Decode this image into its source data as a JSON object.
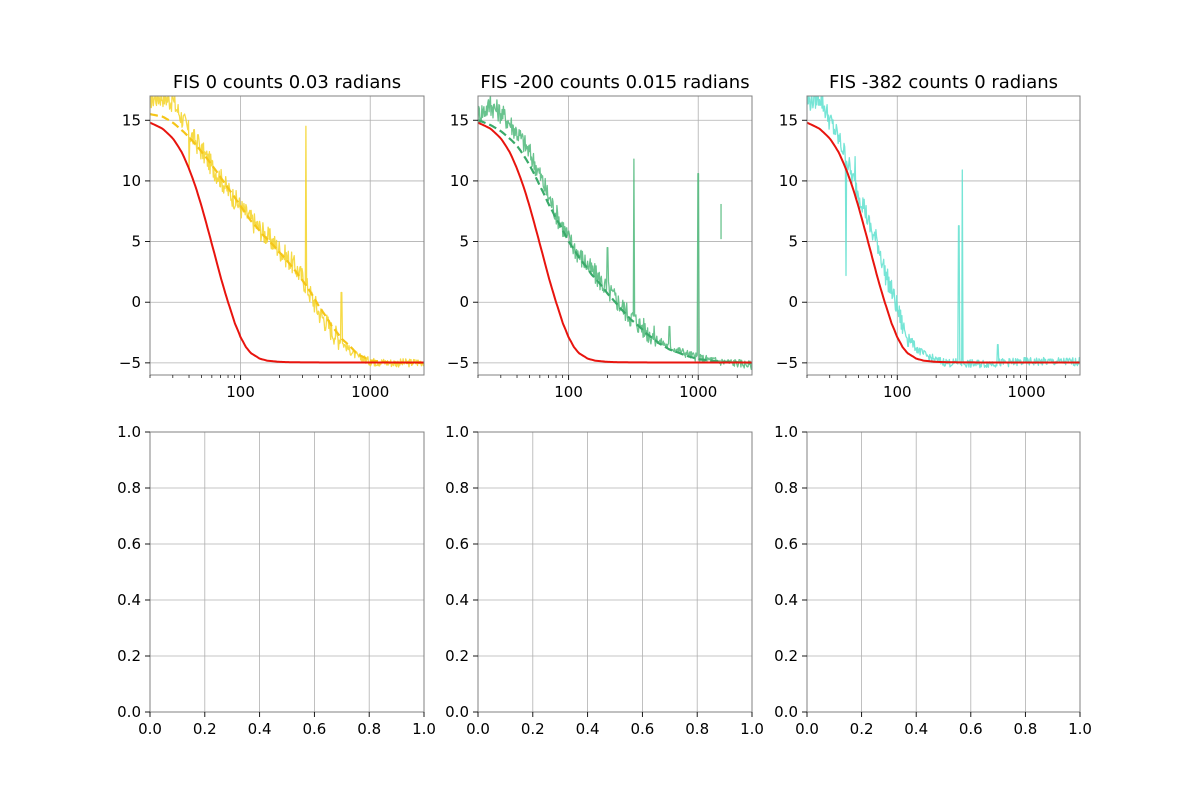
{
  "chart_data": [
    {
      "type": "line",
      "title": "FIS 0 counts 0.03 radians",
      "xlabel": "",
      "ylabel": "",
      "x_scale": "log",
      "xlim": [
        20,
        2600
      ],
      "ylim": [
        -6,
        17
      ],
      "grid": true,
      "x_ticks": [
        100,
        1000
      ],
      "x_tick_labels": [
        "100",
        "1000"
      ],
      "y_ticks": [
        -5,
        0,
        5,
        10,
        15
      ],
      "y_tick_labels": [
        "−5",
        "0",
        "5",
        "10",
        "15"
      ],
      "series": [
        {
          "style": "noisy",
          "color": "#f5d327",
          "x": [
            20,
            25,
            30,
            40,
            50,
            60,
            70,
            80,
            100,
            120,
            150,
            200,
            250,
            300,
            320,
            350,
            400,
            500,
            600,
            700,
            800,
            1000,
            1500,
            2000,
            2600
          ],
          "y": [
            16.8,
            17,
            16.5,
            14,
            12.5,
            11.2,
            10.2,
            9.2,
            7.8,
            6.8,
            5.7,
            4.3,
            3.2,
            2.0,
            1.4,
            0.5,
            -0.8,
            -2.3,
            -3.3,
            -4.0,
            -4.5,
            -4.9,
            -5.0,
            -5.0,
            -4.9
          ],
          "spikes": [
            [
              30,
              17
            ],
            [
              40,
              11
            ],
            [
              47,
              13.8
            ],
            [
              320,
              14.5
            ],
            [
              600,
              0.8
            ]
          ]
        },
        {
          "style": "dashed",
          "color": "#f5c518",
          "x": [
            20,
            25,
            30,
            40,
            50,
            60,
            70,
            80,
            100,
            120,
            150,
            200,
            250,
            300,
            400,
            500,
            600,
            800,
            1000,
            1500,
            2600
          ],
          "y": [
            15.5,
            15.3,
            14.8,
            13.6,
            12.4,
            11.3,
            10.3,
            9.4,
            7.9,
            6.7,
            5.5,
            4.1,
            2.9,
            1.8,
            -0.3,
            -1.9,
            -3.0,
            -4.3,
            -4.8,
            -5.0,
            -5.0
          ]
        },
        {
          "style": "solid",
          "color": "#e8140e",
          "x": [
            20,
            25,
            30,
            35,
            40,
            45,
            50,
            55,
            60,
            65,
            70,
            75,
            80,
            90,
            100,
            110,
            120,
            140,
            160,
            200,
            250,
            300,
            500,
            1000,
            2600
          ],
          "y": [
            14.8,
            14.3,
            13.5,
            12.4,
            11.0,
            9.5,
            7.9,
            6.3,
            4.8,
            3.4,
            2.1,
            1.0,
            0.0,
            -1.7,
            -2.9,
            -3.7,
            -4.2,
            -4.65,
            -4.82,
            -4.92,
            -4.95,
            -4.96,
            -4.97,
            -4.97,
            -4.97
          ]
        }
      ]
    },
    {
      "type": "line",
      "title": "FIS -200 counts 0.015 radians",
      "xlabel": "",
      "ylabel": "",
      "x_scale": "log",
      "xlim": [
        20,
        2600
      ],
      "ylim": [
        -6,
        17
      ],
      "grid": true,
      "x_ticks": [
        100,
        1000
      ],
      "x_tick_labels": [
        "100",
        "1000"
      ],
      "y_ticks": [
        -5,
        0,
        5,
        10,
        15
      ],
      "y_tick_labels": [
        "−5",
        "0",
        "5",
        "10",
        "15"
      ],
      "series": [
        {
          "style": "noisy",
          "color": "#4fb97a",
          "x": [
            20,
            25,
            30,
            40,
            50,
            60,
            70,
            80,
            100,
            120,
            150,
            200,
            250,
            300,
            400,
            500,
            600,
            800,
            1000,
            1500,
            2000,
            2600
          ],
          "y": [
            15.5,
            16.2,
            15.6,
            14.0,
            12.3,
            10.5,
            8.7,
            7.3,
            5.2,
            3.9,
            2.6,
            1.0,
            -0.2,
            -1.2,
            -2.4,
            -3.2,
            -3.7,
            -4.2,
            -4.6,
            -4.9,
            -5.0,
            -5.2
          ],
          "spikes": [
            [
              25,
              17
            ],
            [
              200,
              4.5
            ],
            [
              320,
              11.8
            ],
            [
              600,
              -2.0
            ],
            [
              1000,
              10.6
            ]
          ],
          "fragment": {
            "x": [
              1500,
              1500
            ],
            "y": [
              5.2,
              8.1
            ]
          }
        },
        {
          "style": "dashed",
          "color": "#3aaa6a",
          "x": [
            20,
            25,
            30,
            40,
            50,
            60,
            70,
            80,
            100,
            120,
            150,
            200,
            250,
            300,
            400,
            500,
            600,
            800,
            1000,
            1500,
            2600
          ],
          "y": [
            15.0,
            14.6,
            14.1,
            12.9,
            11.3,
            9.6,
            8.1,
            6.9,
            5.0,
            3.7,
            2.3,
            0.7,
            -0.5,
            -1.4,
            -2.6,
            -3.4,
            -3.9,
            -4.4,
            -4.7,
            -4.9,
            -5.0
          ]
        },
        {
          "style": "solid",
          "color": "#e8140e",
          "x": [
            20,
            25,
            30,
            35,
            40,
            45,
            50,
            55,
            60,
            65,
            70,
            75,
            80,
            90,
            100,
            110,
            120,
            140,
            160,
            200,
            250,
            300,
            500,
            1000,
            2600
          ],
          "y": [
            14.8,
            14.3,
            13.5,
            12.4,
            11.0,
            9.5,
            7.9,
            6.3,
            4.8,
            3.4,
            2.1,
            1.0,
            0.0,
            -1.7,
            -2.9,
            -3.7,
            -4.2,
            -4.65,
            -4.82,
            -4.92,
            -4.95,
            -4.96,
            -4.97,
            -4.97,
            -4.97
          ]
        }
      ]
    },
    {
      "type": "line",
      "title": "FIS -382 counts 0 radians",
      "xlabel": "",
      "ylabel": "",
      "x_scale": "log",
      "xlim": [
        20,
        2600
      ],
      "ylim": [
        -6,
        17
      ],
      "grid": true,
      "x_ticks": [
        100,
        1000
      ],
      "x_tick_labels": [
        "100",
        "1000"
      ],
      "y_ticks": [
        -5,
        0,
        5,
        10,
        15
      ],
      "y_tick_labels": [
        "−5",
        "0",
        "5",
        "10",
        "15"
      ],
      "series": [
        {
          "style": "noisy",
          "color": "#5fe0cf",
          "x": [
            20,
            25,
            30,
            35,
            40,
            45,
            50,
            55,
            60,
            65,
            70,
            75,
            80,
            90,
            100,
            110,
            120,
            140,
            160,
            200,
            250,
            300,
            400,
            600,
            1000,
            1500,
            2600
          ],
          "y": [
            16.5,
            17,
            15.0,
            13.5,
            12.0,
            10.2,
            9.0,
            8.0,
            6.5,
            5.5,
            5.0,
            3.8,
            2.5,
            1.0,
            -0.5,
            -2.0,
            -2.8,
            -3.8,
            -4.3,
            -4.8,
            -5.0,
            -5.0,
            -5.1,
            -5.0,
            -4.9,
            -4.9,
            -4.9
          ],
          "spikes": [
            [
              40,
              2.2
            ],
            [
              47,
              12.0
            ],
            [
              300,
              6.3
            ],
            [
              320,
              10.9
            ],
            [
              600,
              -3.5
            ]
          ]
        },
        {
          "style": "solid",
          "color": "#e8140e",
          "x": [
            20,
            25,
            30,
            35,
            40,
            45,
            50,
            55,
            60,
            65,
            70,
            75,
            80,
            90,
            100,
            110,
            120,
            140,
            160,
            200,
            250,
            300,
            500,
            1000,
            2600
          ],
          "y": [
            14.8,
            14.3,
            13.5,
            12.4,
            11.0,
            9.5,
            7.9,
            6.3,
            4.8,
            3.4,
            2.1,
            1.0,
            0.0,
            -1.7,
            -2.9,
            -3.7,
            -4.2,
            -4.65,
            -4.82,
            -4.92,
            -4.95,
            -4.96,
            -4.97,
            -4.97,
            -4.97
          ]
        }
      ]
    },
    {
      "type": "line",
      "title": "",
      "xlabel": "",
      "ylabel": "",
      "xlim": [
        0,
        1
      ],
      "ylim": [
        0,
        1
      ],
      "grid": true,
      "x_ticks": [
        0,
        0.2,
        0.4,
        0.6,
        0.8,
        1.0
      ],
      "x_tick_labels": [
        "0.0",
        "0.2",
        "0.4",
        "0.6",
        "0.8",
        "1.0"
      ],
      "y_ticks": [
        0,
        0.2,
        0.4,
        0.6,
        0.8,
        1.0
      ],
      "y_tick_labels": [
        "0.0",
        "0.2",
        "0.4",
        "0.6",
        "0.8",
        "1.0"
      ],
      "series": []
    },
    {
      "type": "line",
      "title": "",
      "xlabel": "",
      "ylabel": "",
      "xlim": [
        0,
        1
      ],
      "ylim": [
        0,
        1
      ],
      "grid": true,
      "x_ticks": [
        0,
        0.2,
        0.4,
        0.6,
        0.8,
        1.0
      ],
      "x_tick_labels": [
        "0.0",
        "0.2",
        "0.4",
        "0.6",
        "0.8",
        "1.0"
      ],
      "y_ticks": [
        0,
        0.2,
        0.4,
        0.6,
        0.8,
        1.0
      ],
      "y_tick_labels": [
        "0.0",
        "0.2",
        "0.4",
        "0.6",
        "0.8",
        "1.0"
      ],
      "series": []
    },
    {
      "type": "line",
      "title": "",
      "xlabel": "",
      "ylabel": "",
      "xlim": [
        0,
        1
      ],
      "ylim": [
        0,
        1
      ],
      "grid": true,
      "x_ticks": [
        0,
        0.2,
        0.4,
        0.6,
        0.8,
        1.0
      ],
      "x_tick_labels": [
        "0.0",
        "0.2",
        "0.4",
        "0.6",
        "0.8",
        "1.0"
      ],
      "y_ticks": [
        0,
        0.2,
        0.4,
        0.6,
        0.8,
        1.0
      ],
      "y_tick_labels": [
        "0.0",
        "0.2",
        "0.4",
        "0.6",
        "0.8",
        "1.0"
      ],
      "series": []
    }
  ]
}
